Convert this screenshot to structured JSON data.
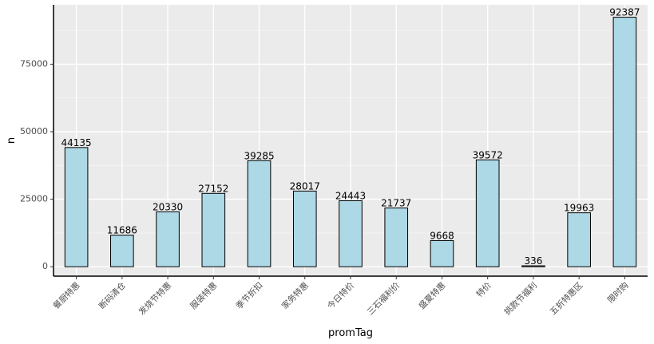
{
  "chart_data": {
    "type": "bar",
    "xlabel": "promTag",
    "ylabel": "n",
    "categories": [
      "餐厨特惠",
      "断码清仓",
      "发烧节特惠",
      "服装特惠",
      "季节折扣",
      "家务特惠",
      "今日特价",
      "三石福利价",
      "盛夏特惠",
      "特价",
      "挑款节福利",
      "五折特惠区",
      "限时购"
    ],
    "values": [
      44135,
      11686,
      20330,
      27152,
      39285,
      28017,
      24443,
      21737,
      9668,
      39572,
      336,
      19963,
      92387
    ],
    "ylim": [
      -3500,
      97000
    ],
    "yticks": [
      0,
      25000,
      50000,
      75000
    ],
    "ytick_labels": [
      "0",
      "25000",
      "50000",
      "75000"
    ],
    "grid": true,
    "colors": {
      "bar_fill": "#add8e6",
      "bar_stroke": "#000000",
      "panel": "#ebebeb",
      "grid_major": "#ffffff",
      "axis_line": "#000000"
    }
  }
}
